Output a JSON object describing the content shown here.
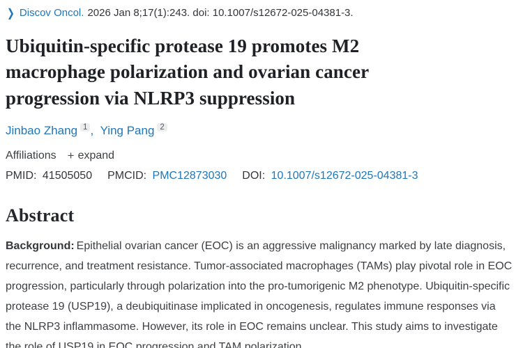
{
  "colors": {
    "link_blue": "#2076b8",
    "title_text": "#1e2126",
    "body_text": "#3c4043",
    "sup_chip_bg": "#ededee",
    "background": "#ffffff"
  },
  "citation": {
    "chevron_icon": "❯",
    "journal": "Discov Oncol.",
    "rest": "2026 Jan 8;17(1):243. doi: 10.1007/s12672-025-04381-3."
  },
  "article": {
    "title": "Ubiquitin-specific protease 19 promotes M2 macrophage polarization and ovarian cancer progression via NLRP3 suppression"
  },
  "authors": {
    "list": [
      {
        "name": "Jinbao Zhang",
        "sup": "1"
      },
      {
        "name": "Ying Pang",
        "sup": "2"
      }
    ],
    "separator": ","
  },
  "affiliations": {
    "label": "Affiliations",
    "expand_icon": "+",
    "expand_label": "expand"
  },
  "identifiers": {
    "pmid_label": "PMID:",
    "pmid": "41505050",
    "pmcid_label": "PMCID:",
    "pmcid": "PMC12873030",
    "doi_label": "DOI:",
    "doi": "10.1007/s12672-025-04381-3"
  },
  "abstract": {
    "heading": "Abstract",
    "background_label": "Background:",
    "text": "Epithelial ovarian cancer (EOC) is an aggressive malignancy marked by late diagnosis, recurrence, and treatment resistance. Tumor-associated macrophages (TAMs) play pivotal role in EOC progression, particularly through polarization into the pro-tumorigenic M2 phenotype. Ubiquitin-specific protease 19 (USP19), a deubiquitinase implicated in oncogenesis, regulates immune responses via the NLRP3 inflammasome. However, its role in EOC remains unclear. This study aims to investigate the role of USP19 in EOC progression and TAM polarization."
  }
}
